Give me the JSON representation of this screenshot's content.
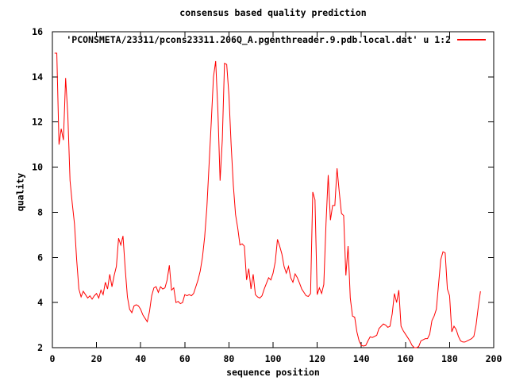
{
  "title": "consensus based quality prediction",
  "legend": {
    "label": "'PCONSMETA/23311/pcons23311.206Q_A.pgenthreader.9.pdb.local.dat' u 1:2",
    "color": "#ff0000"
  },
  "axes": {
    "x_label": "sequence position",
    "y_label": "quality",
    "x_ticks": [
      0,
      20,
      40,
      60,
      80,
      100,
      120,
      140,
      160,
      180,
      200
    ],
    "y_ticks": [
      2,
      4,
      6,
      8,
      10,
      12,
      14,
      16
    ]
  },
  "colors": {
    "line": "#ff0000",
    "axis": "#000000",
    "background": "#ffffff"
  },
  "chart_data": {
    "type": "line",
    "title": "consensus based quality prediction",
    "xlabel": "sequence position",
    "ylabel": "quality",
    "xlim": [
      0,
      200
    ],
    "ylim": [
      2,
      16
    ],
    "grid": false,
    "legend_position": "top-right-inside",
    "series": [
      {
        "name": "'PCONSMETA/23311/pcons23311.206Q_A.pgenthreader.9.pdb.local.dat' u 1:2",
        "color": "#ff0000",
        "x_start": 1,
        "x_step": 1,
        "values": [
          15.05,
          15.05,
          11.0,
          11.7,
          11.2,
          13.95,
          12.3,
          9.4,
          8.4,
          7.5,
          5.9,
          4.6,
          4.25,
          4.5,
          4.35,
          4.2,
          4.3,
          4.15,
          4.3,
          4.4,
          4.2,
          4.55,
          4.35,
          4.9,
          4.6,
          5.25,
          4.7,
          5.2,
          5.6,
          6.85,
          6.55,
          6.95,
          5.5,
          4.25,
          3.7,
          3.55,
          3.85,
          3.9,
          3.85,
          3.7,
          3.45,
          3.3,
          3.15,
          3.6,
          4.3,
          4.65,
          4.7,
          4.45,
          4.7,
          4.6,
          4.65,
          5.0,
          5.65,
          4.55,
          4.65,
          4.0,
          4.05,
          3.95,
          4.0,
          4.35,
          4.3,
          4.35,
          4.3,
          4.4,
          4.7,
          5.0,
          5.4,
          6.0,
          6.9,
          8.2,
          10.1,
          12.0,
          14.0,
          14.7,
          12.5,
          9.4,
          11.2,
          14.6,
          14.55,
          13.2,
          11.0,
          9.2,
          7.9,
          7.3,
          6.55,
          6.6,
          6.5,
          5.0,
          5.5,
          4.6,
          5.25,
          4.35,
          4.25,
          4.2,
          4.3,
          4.6,
          4.85,
          5.1,
          5.0,
          5.3,
          5.8,
          6.8,
          6.5,
          6.15,
          5.6,
          5.3,
          5.6,
          5.1,
          4.9,
          5.27,
          5.1,
          4.86,
          4.6,
          4.45,
          4.3,
          4.27,
          4.4,
          8.9,
          8.55,
          4.35,
          4.65,
          4.4,
          4.8,
          7.5,
          9.65,
          7.65,
          8.3,
          8.3,
          9.95,
          8.9,
          7.95,
          7.85,
          5.2,
          6.5,
          4.2,
          3.4,
          3.35,
          2.7,
          2.3,
          2.1,
          2.07,
          2.1,
          2.3,
          2.48,
          2.45,
          2.5,
          2.55,
          2.85,
          2.95,
          3.05,
          3.0,
          2.9,
          2.95,
          3.5,
          4.4,
          4.0,
          4.55,
          2.95,
          2.75,
          2.6,
          2.45,
          2.3,
          2.1,
          2.0,
          2.0,
          2.05,
          2.3,
          2.35,
          2.4,
          2.4,
          2.6,
          3.2,
          3.4,
          3.7,
          4.8,
          5.9,
          6.25,
          6.2,
          4.6,
          4.3,
          2.7,
          2.95,
          2.8,
          2.5,
          2.3,
          2.25,
          2.25,
          2.3,
          2.35,
          2.4,
          2.5,
          3.0,
          3.8,
          4.5
        ]
      }
    ]
  }
}
